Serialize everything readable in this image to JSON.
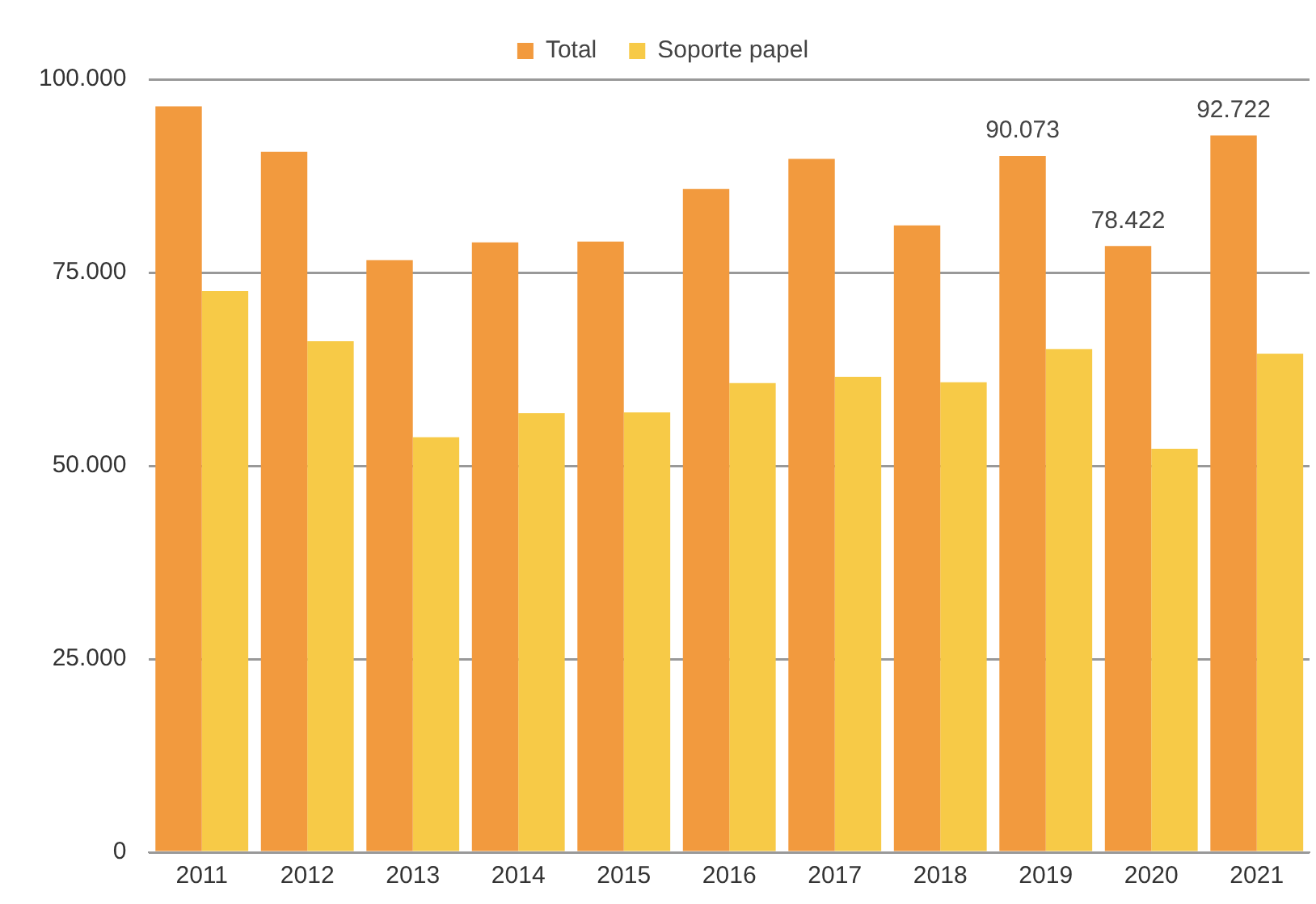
{
  "chart_data": {
    "type": "bar",
    "categories": [
      "2011",
      "2012",
      "2013",
      "2014",
      "2015",
      "2016",
      "2017",
      "2018",
      "2019",
      "2020",
      "2021"
    ],
    "series": [
      {
        "name": "Total",
        "color": "#f29a3e",
        "values": [
          96500,
          90600,
          76600,
          78900,
          79000,
          85800,
          89700,
          81100,
          90073,
          78422,
          92722
        ],
        "value_labels": [
          null,
          null,
          null,
          null,
          null,
          null,
          null,
          null,
          "90.073",
          "78.422",
          "92.722"
        ]
      },
      {
        "name": "Soporte papel",
        "color": "#f7ca47",
        "values": [
          72600,
          66100,
          53700,
          56800,
          56900,
          60700,
          61500,
          60800,
          65100,
          52200,
          64500
        ]
      }
    ],
    "ylim": [
      0,
      100000
    ],
    "yticks": [
      {
        "value": 0,
        "label": "0"
      },
      {
        "value": 25000,
        "label": "25.000"
      },
      {
        "value": 50000,
        "label": "50.000"
      },
      {
        "value": 75000,
        "label": "75.000"
      },
      {
        "value": 100000,
        "label": "100.000"
      }
    ],
    "grid": "y",
    "legend": "top"
  }
}
